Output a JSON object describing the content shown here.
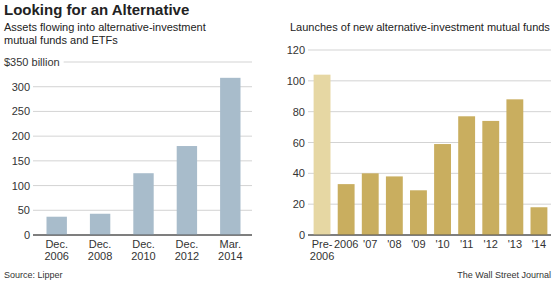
{
  "header": {
    "title": "Looking for an Alternative"
  },
  "footer": {
    "source": "Source: Lipper",
    "credit": "The Wall Street Journal"
  },
  "chart_data": [
    {
      "type": "bar",
      "title": "Assets flowing into alternative-investment mutual funds and ETFs",
      "categories": [
        "Dec. 2006",
        "Dec. 2008",
        "Dec. 2010",
        "Dec. 2012",
        "Mar. 2014"
      ],
      "values": [
        37,
        43,
        125,
        180,
        318
      ],
      "color": "#a8bccb",
      "ylim": [
        0,
        350
      ],
      "yticks": [
        0,
        50,
        100,
        150,
        200,
        250,
        300,
        {
          "value": 350,
          "label": "$350 billion"
        }
      ],
      "grid": true
    },
    {
      "type": "bar",
      "title": "Launches of new alternative-investment mutual funds",
      "categories": [
        "Pre-2006",
        "2006",
        "'07",
        "'08",
        "'09",
        "'10",
        "'11",
        "'12",
        "'13",
        "'14"
      ],
      "values": [
        104,
        33,
        40,
        38,
        29,
        59,
        77,
        74,
        88,
        18
      ],
      "colors": [
        "#e6d7a3",
        "#c9ae5f",
        "#c9ae5f",
        "#c9ae5f",
        "#c9ae5f",
        "#c9ae5f",
        "#c9ae5f",
        "#c9ae5f",
        "#c9ae5f",
        "#c9ae5f"
      ],
      "ylim": [
        0,
        120
      ],
      "yticks": [
        0,
        20,
        40,
        60,
        80,
        100,
        120
      ],
      "grid": true
    }
  ]
}
